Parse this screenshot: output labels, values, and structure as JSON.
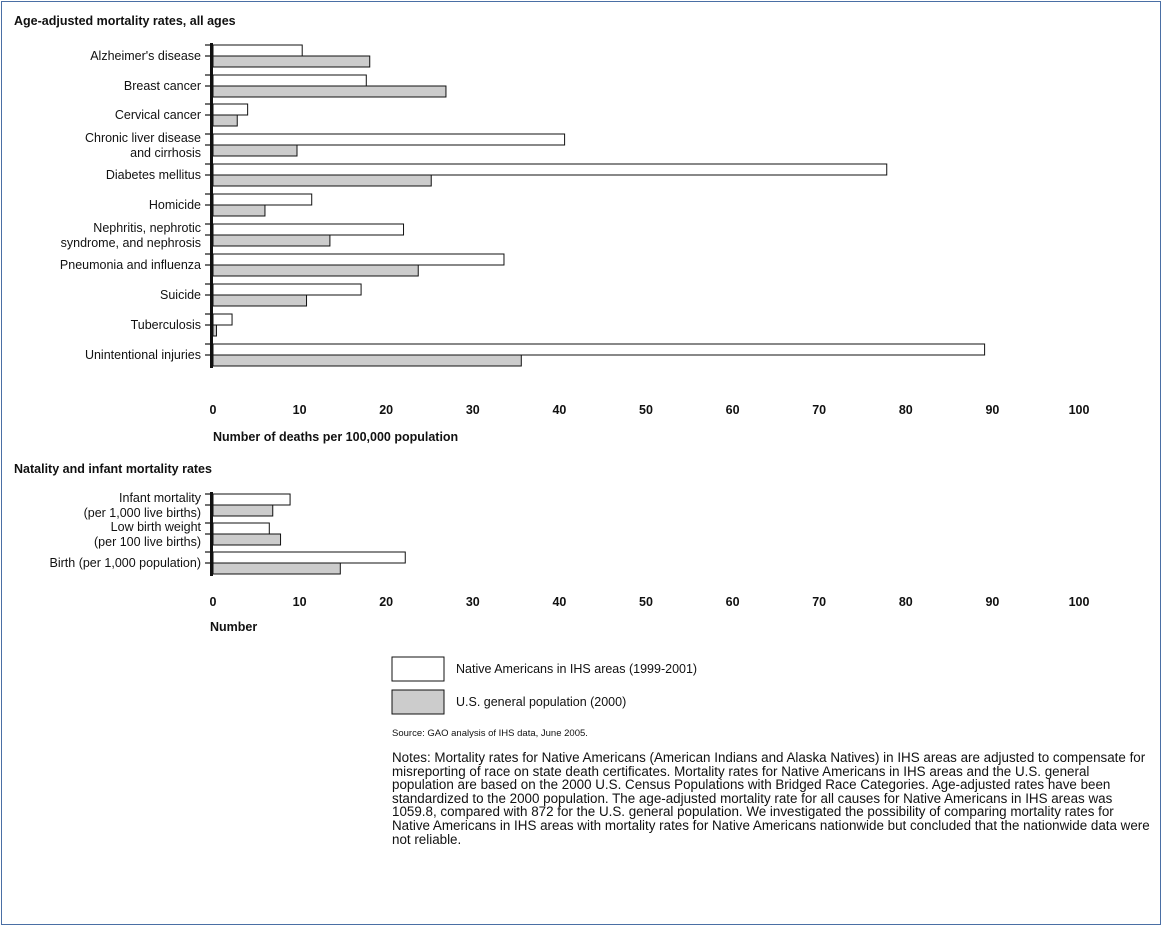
{
  "charts": [
    {
      "title": "Age-adjusted mortality rates, all ages",
      "xlabel": "Number of deaths per 100,000 population"
    },
    {
      "title": "Natality and infant mortality rates",
      "xlabel": "Number"
    }
  ],
  "chart_data": [
    {
      "type": "bar",
      "orientation": "horizontal",
      "title": "Age-adjusted mortality rates, all ages",
      "xlabel": "Number of deaths per 100,000 population",
      "xlim": [
        0,
        100
      ],
      "xticks": [
        0,
        10,
        20,
        30,
        40,
        50,
        60,
        70,
        80,
        90,
        100
      ],
      "categories": [
        [
          "Alzheimer's disease"
        ],
        [
          "Breast cancer"
        ],
        [
          "Cervical cancer"
        ],
        [
          "Chronic liver disease",
          "and cirrhosis"
        ],
        [
          "Diabetes mellitus"
        ],
        [
          "Homicide"
        ],
        [
          "Nephritis, nephrotic",
          "syndrome, and nephrosis"
        ],
        [
          "Pneumonia and influenza"
        ],
        [
          "Suicide"
        ],
        [
          "Tuberculosis"
        ],
        [
          "Unintentional injuries"
        ]
      ],
      "series": [
        {
          "name": "Native Americans in IHS areas (1999-2001)",
          "color": "#ffffff",
          "values": [
            10.3,
            17.7,
            4.0,
            40.6,
            77.8,
            11.4,
            22.0,
            33.6,
            17.1,
            2.2,
            89.1
          ]
        },
        {
          "name": "U.S. general population (2000)",
          "color": "#cccccc",
          "values": [
            18.1,
            26.9,
            2.8,
            9.7,
            25.2,
            6.0,
            13.5,
            23.7,
            10.8,
            0.4,
            35.6
          ]
        }
      ]
    },
    {
      "type": "bar",
      "orientation": "horizontal",
      "title": "Natality and infant mortality rates",
      "xlabel": "Number",
      "xlim": [
        0,
        100
      ],
      "xticks": [
        0,
        10,
        20,
        30,
        40,
        50,
        60,
        70,
        80,
        90,
        100
      ],
      "categories": [
        [
          "Infant mortality",
          "(per 1,000 live births)"
        ],
        [
          "Low birth weight",
          "(per 100 live births)"
        ],
        [
          "Birth (per 1,000 population)"
        ]
      ],
      "series": [
        {
          "name": "Native Americans in IHS areas (1999-2001)",
          "color": "#ffffff",
          "values": [
            8.9,
            6.5,
            22.2
          ]
        },
        {
          "name": "U.S. general population (2000)",
          "color": "#cccccc",
          "values": [
            6.9,
            7.8,
            14.7
          ]
        }
      ]
    }
  ],
  "legend": {
    "items": [
      {
        "label": "Native Americans in IHS areas (1999-2001)",
        "color": "#ffffff"
      },
      {
        "label": "U.S. general population (2000)",
        "color": "#cccccc"
      }
    ]
  },
  "source": "Source: GAO analysis of IHS data, June 2005.",
  "notes": "Notes: Mortality rates for Native Americans (American Indians and Alaska Natives) in IHS areas are adjusted to compensate for misreporting of race on state death certificates. Mortality rates for Native Americans in IHS areas and the U.S. general population are based on the 2000 U.S. Census Populations with Bridged Race Categories. Age-adjusted rates have been standardized to the 2000 population. The age-adjusted mortality rate for all causes for Native Americans in IHS areas was 1059.8, compared with 872 for the U.S. general population. We investigated the possibility of comparing mortality rates for Native Americans in IHS areas with mortality rates for Native Americans nationwide but concluded that the nationwide data were not reliable."
}
